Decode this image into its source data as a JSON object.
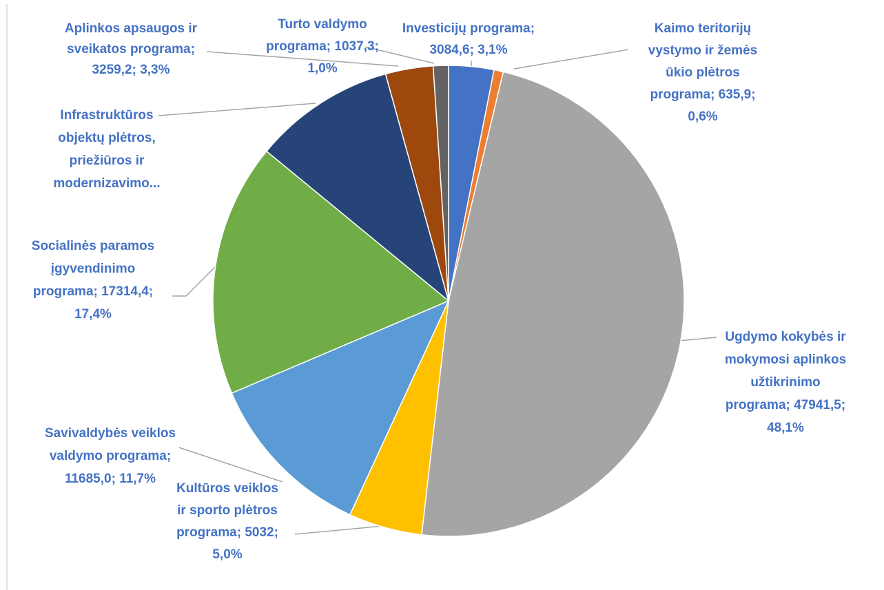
{
  "chart_data": {
    "type": "pie",
    "labels": [
      [
        "Investicijų programa;",
        "3084,6; 3,1%"
      ],
      [
        "Kaimo teritorijų",
        "vystymo ir žemės",
        "ūkio plėtros",
        "programa; 635,9;",
        "0,6%"
      ],
      [
        "Ugdymo kokybės ir",
        "mokymosi aplinkos",
        "užtikrinimo",
        "programa; 47941,5;",
        "48,1%"
      ],
      [
        "Kultūros veiklos",
        "ir sporto plėtros",
        "programa; 5032;",
        "5,0%"
      ],
      [
        "Savivaldybės veiklos",
        "valdymo programa;",
        "11685,0; 11,7%"
      ],
      [
        "Socialinės paramos",
        "įgyvendinimo",
        "programa; 17314,4;",
        "17,4%"
      ],
      [
        "Infrastruktūros",
        "objektų plėtros,",
        "priežiūros ir",
        "modernizavimo..."
      ],
      [
        "Aplinkos apsaugos ir",
        "sveikatos programa;",
        "3259,2; 3,3%"
      ],
      [
        "Turto valdymo",
        "programa; 1037,3;",
        "1,0%"
      ]
    ],
    "values": [
      3084.6,
      635.9,
      47941.5,
      5032,
      11685.0,
      17314.4,
      9700,
      3259.2,
      1037.3
    ],
    "colors": [
      "#4472c4",
      "#ed7d31",
      "#a5a5a5",
      "#ffc000",
      "#5b9bd5",
      "#70ad47",
      "#264478",
      "#9e480e",
      "#636363"
    ]
  }
}
